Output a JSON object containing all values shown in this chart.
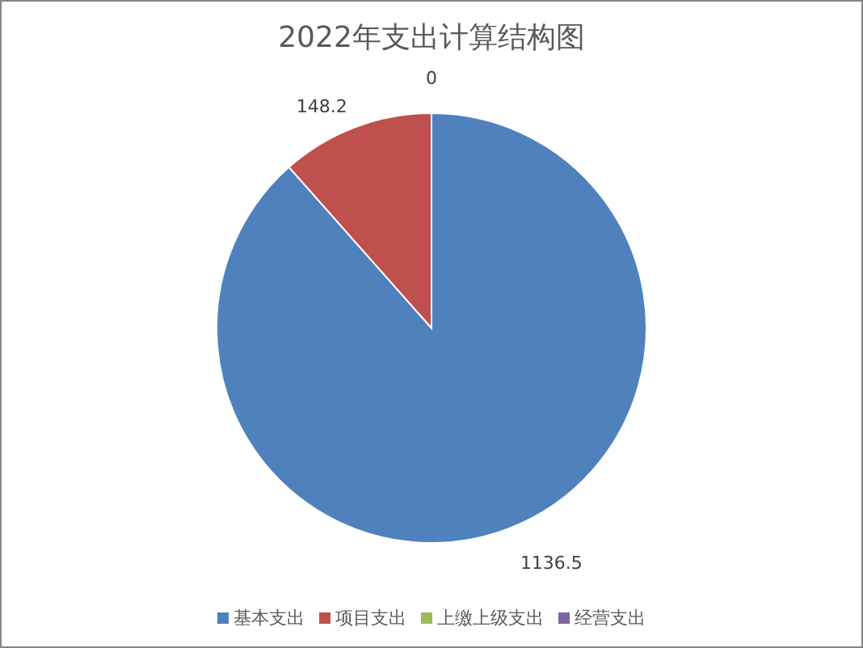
{
  "chart_data": {
    "type": "pie",
    "title": "2022年支出计算结构图",
    "categories": [
      "基本支出",
      "项目支出",
      "上缴上级支出",
      "经营支出"
    ],
    "values": [
      1136.5,
      148.2,
      0,
      0
    ],
    "colors": [
      "#4f81bd",
      "#c0504d",
      "#9bbb59",
      "#8064a2"
    ],
    "value_labels": [
      "1136.5",
      "148.2",
      "0",
      null
    ],
    "legend": "bottom"
  }
}
